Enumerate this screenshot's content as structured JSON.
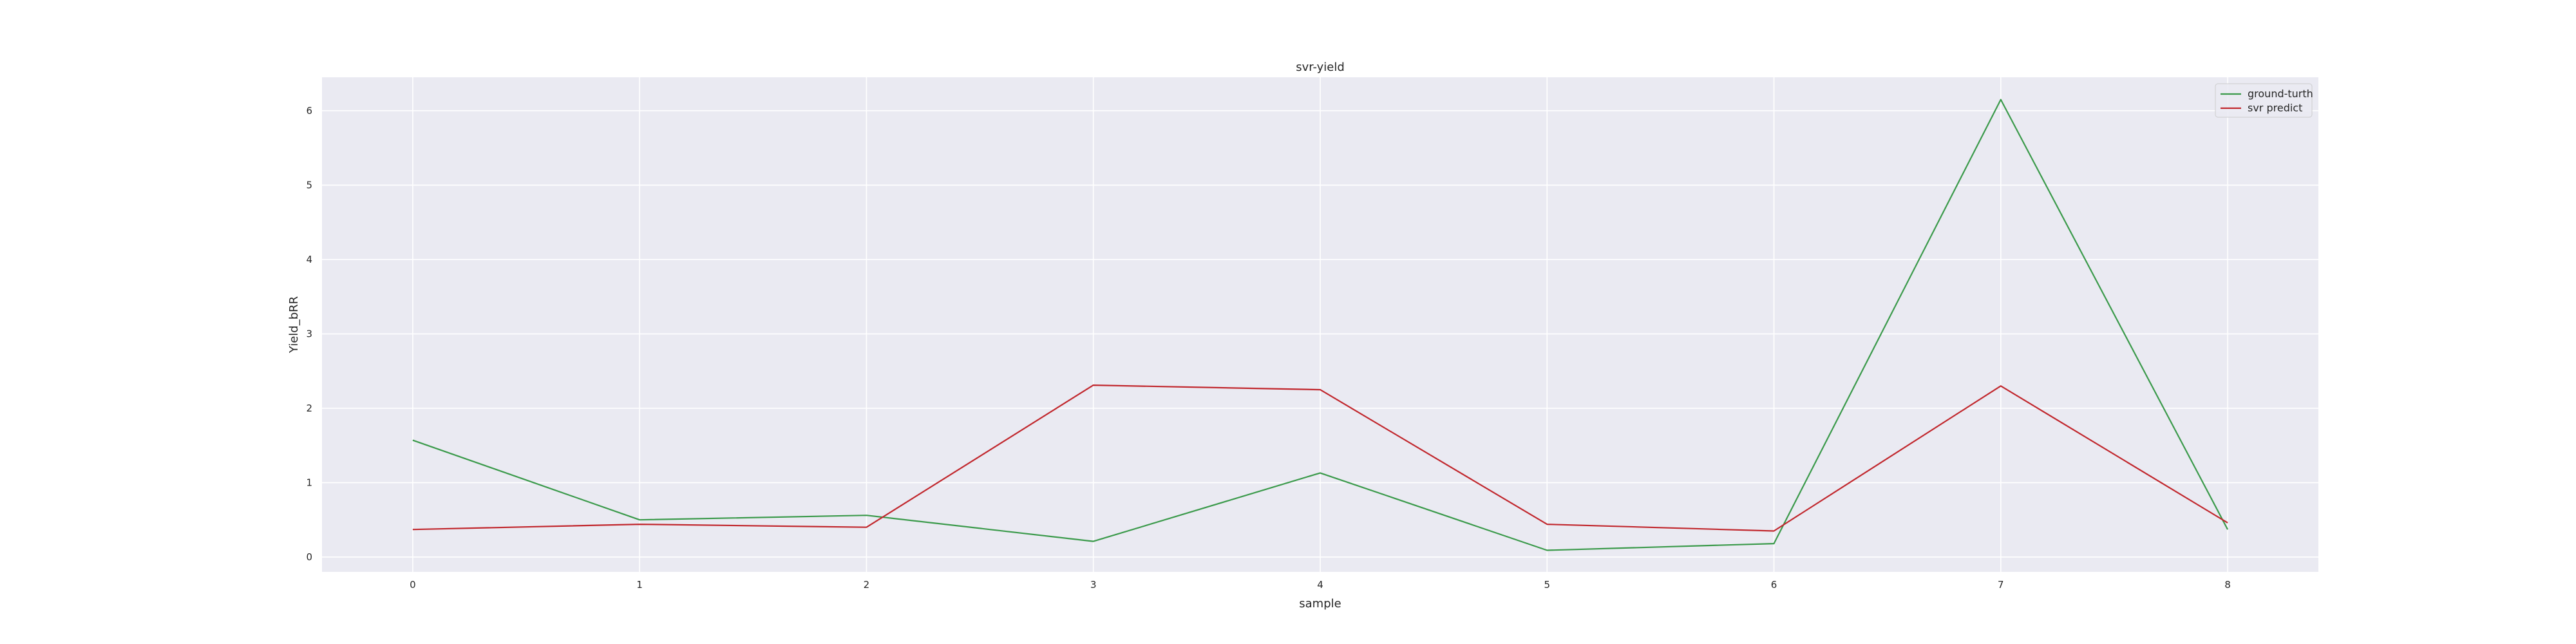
{
  "chart_data": {
    "type": "line",
    "title": "svr-yield",
    "xlabel": "sample",
    "ylabel": "Yield_bRR",
    "x": [
      0,
      1,
      2,
      3,
      4,
      5,
      6,
      7,
      8
    ],
    "x_ticks": [
      "0",
      "1",
      "2",
      "3",
      "4",
      "5",
      "6",
      "7",
      "8"
    ],
    "y_ticks": [
      "0",
      "1",
      "2",
      "3",
      "4",
      "5",
      "6"
    ],
    "xlim": [
      -0.4,
      8.4
    ],
    "ylim": [
      -0.2,
      6.45
    ],
    "grid": true,
    "legend_position": "top-right",
    "background_color": "#eaeaf2",
    "series": [
      {
        "name": "ground-turth",
        "color": "#3b9a4b",
        "values": [
          1.57,
          0.5,
          0.56,
          0.21,
          1.13,
          0.09,
          0.18,
          6.15,
          0.37
        ]
      },
      {
        "name": "svr predict",
        "color": "#c1272d",
        "values": [
          0.37,
          0.44,
          0.4,
          2.31,
          2.25,
          0.44,
          0.35,
          2.3,
          0.46
        ]
      }
    ]
  }
}
